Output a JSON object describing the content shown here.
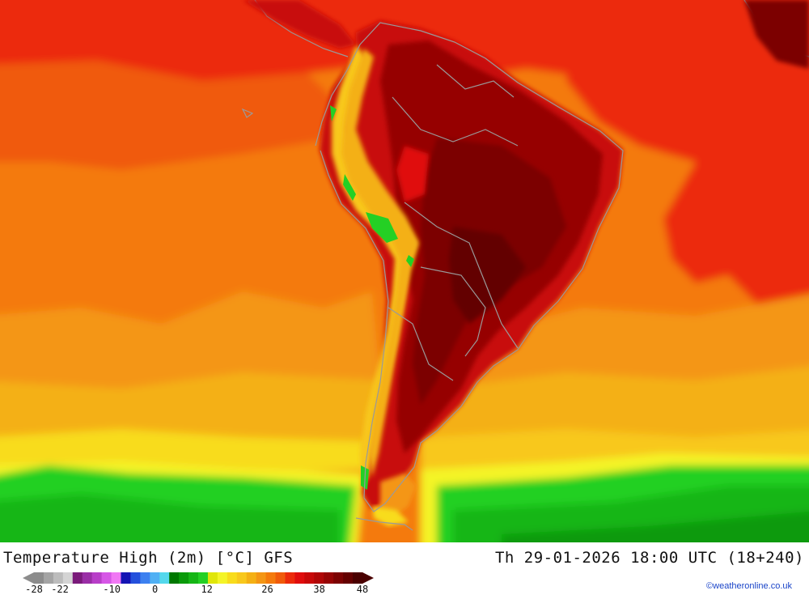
{
  "map": {
    "title": "Temperature High (2m) [°C] GFS",
    "datetime": "Th 29-01-2026 18:00 UTC (18+240)",
    "credit": "©weatheronline.co.uk"
  },
  "legend": {
    "unit": "°C",
    "ticks": [
      "-28",
      "-22",
      "-10",
      "0",
      "12",
      "26",
      "38",
      "48"
    ],
    "colors": [
      "#8c8c8c",
      "#a4a4a4",
      "#bcbcbc",
      "#d4d4d4",
      "#7a1a7a",
      "#9a2ea6",
      "#b83ec8",
      "#d656e6",
      "#f078f4",
      "#1414b4",
      "#2450dc",
      "#3c80f0",
      "#50b0f4",
      "#54d8ec",
      "#007800",
      "#0a9a0a",
      "#16b616",
      "#24d024",
      "#e0e60a",
      "#f4f428",
      "#f8dc1c",
      "#f8c81c",
      "#f4b014",
      "#f49614",
      "#f47a0c",
      "#f05a0a",
      "#ec2a0a",
      "#e00c0c",
      "#c80808",
      "#b00606",
      "#960404",
      "#7c0202",
      "#640000",
      "#4a0000"
    ]
  },
  "regions": [
    "South America",
    "Pacific Ocean",
    "Atlantic Ocean"
  ]
}
